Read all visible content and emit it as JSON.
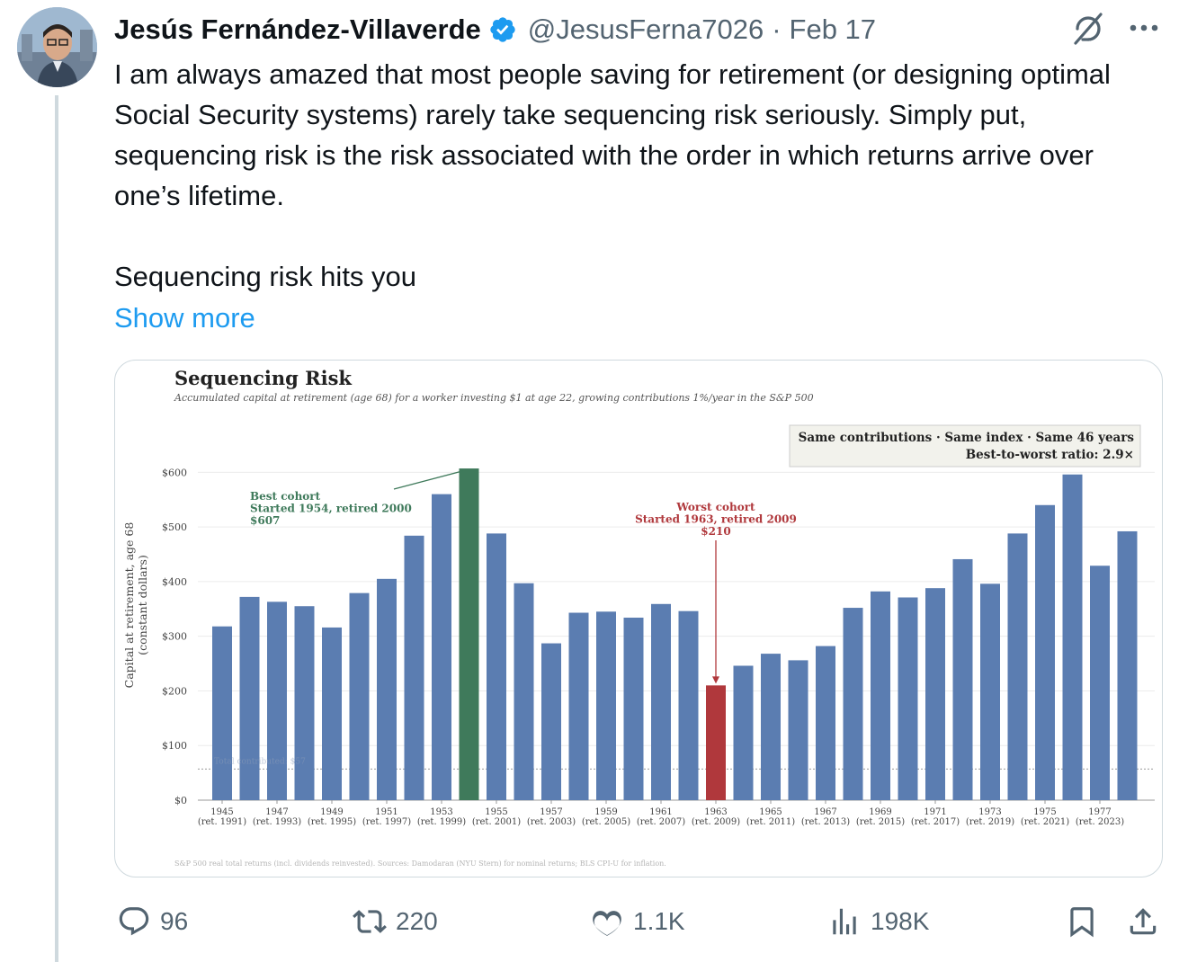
{
  "tweet": {
    "author_name": "Jesús Fernández-Villaverde",
    "handle": "@JesusFerna7026",
    "separator": "·",
    "date": "Feb 17",
    "paragraph_1": "I am always amazed that most people saving for retirement (or designing optimal Social Security systems) rarely take sequencing risk seriously. Simply put, sequencing risk is the risk associated with the order in which returns arrive over one’s lifetime.",
    "paragraph_2": "Sequencing risk hits you",
    "show_more": "Show more"
  },
  "icons": {
    "avatar": "profile-photo",
    "verified": "verified-badge-icon",
    "grok": "grok-icon",
    "more": "more-icon",
    "reply": "reply-icon",
    "retweet": "retweet-icon",
    "like": "heart-icon",
    "views": "analytics-icon",
    "bookmark": "bookmark-icon",
    "share": "share-icon"
  },
  "actions": {
    "replies": "96",
    "retweets": "220",
    "likes": "1.1K",
    "views": "198K"
  },
  "colors": {
    "bar": "#5b7db1",
    "best": "#3f7a5b",
    "worst": "#b0383c",
    "link": "#1d9bf0",
    "verified": "#1d9bf0"
  },
  "chart_data": {
    "type": "bar",
    "title": "Sequencing Risk",
    "subtitle": "Accumulated capital at retirement (age 68) for a worker investing $1 at age 22, growing contributions 1%/year in the S&P 500",
    "ylabel_line1": "Capital at retirement, age 68",
    "ylabel_line2": "(constant dollars)",
    "ylim": [
      0,
      640
    ],
    "yticks": [
      0,
      100,
      200,
      300,
      400,
      500,
      600
    ],
    "ytick_labels": [
      "$0",
      "$100",
      "$200",
      "$300",
      "$400",
      "$500",
      "$600"
    ],
    "categories": [
      "1945",
      "1946",
      "1947",
      "1948",
      "1949",
      "1950",
      "1951",
      "1952",
      "1953",
      "1954",
      "1955",
      "1956",
      "1957",
      "1958",
      "1959",
      "1960",
      "1961",
      "1962",
      "1963",
      "1964",
      "1965",
      "1966",
      "1967",
      "1968",
      "1969",
      "1970",
      "1971",
      "1972",
      "1973",
      "1974",
      "1975",
      "1976",
      "1977",
      "1978"
    ],
    "values": [
      318,
      372,
      363,
      355,
      316,
      379,
      405,
      484,
      560,
      607,
      488,
      397,
      287,
      343,
      345,
      334,
      359,
      346,
      210,
      246,
      268,
      256,
      282,
      352,
      382,
      371,
      388,
      441,
      396,
      488,
      540,
      596,
      429,
      492
    ],
    "xtick_labels": [
      {
        "category": "1945",
        "year": "1945",
        "ret": "(ret. 1991)"
      },
      {
        "category": "1947",
        "year": "1947",
        "ret": "(ret. 1993)"
      },
      {
        "category": "1949",
        "year": "1949",
        "ret": "(ret. 1995)"
      },
      {
        "category": "1951",
        "year": "1951",
        "ret": "(ret. 1997)"
      },
      {
        "category": "1953",
        "year": "1953",
        "ret": "(ret. 1999)"
      },
      {
        "category": "1955",
        "year": "1955",
        "ret": "(ret. 2001)"
      },
      {
        "category": "1957",
        "year": "1957",
        "ret": "(ret. 2003)"
      },
      {
        "category": "1959",
        "year": "1959",
        "ret": "(ret. 2005)"
      },
      {
        "category": "1961",
        "year": "1961",
        "ret": "(ret. 2007)"
      },
      {
        "category": "1963",
        "year": "1963",
        "ret": "(ret. 2009)"
      },
      {
        "category": "1965",
        "year": "1965",
        "ret": "(ret. 2011)"
      },
      {
        "category": "1967",
        "year": "1967",
        "ret": "(ret. 2013)"
      },
      {
        "category": "1969",
        "year": "1969",
        "ret": "(ret. 2015)"
      },
      {
        "category": "1971",
        "year": "1971",
        "ret": "(ret. 2017)"
      },
      {
        "category": "1973",
        "year": "1973",
        "ret": "(ret. 2019)"
      },
      {
        "category": "1975",
        "year": "1975",
        "ret": "(ret. 2021)"
      },
      {
        "category": "1977",
        "year": "1977",
        "ret": "(ret. 2023)"
      }
    ],
    "best": {
      "category": "1954",
      "value": 607,
      "label_lines": [
        "Best cohort",
        "Started 1954, retired 2000",
        "$607"
      ]
    },
    "worst": {
      "category": "1963",
      "value": 210,
      "label_lines": [
        "Worst cohort",
        "Started 1963, retired 2009",
        "$210"
      ]
    },
    "reference_line": {
      "value": 57,
      "label": "Total contributed: $57"
    },
    "info_box": [
      "Same contributions · Same index · Same 46 years",
      "Best-to-worst ratio: 2.9×"
    ],
    "footnote": "S&P 500 real total returns (incl. dividends reinvested). Sources: Damodaran (NYU Stern) for nominal returns; BLS CPI-U for inflation.",
    "grid": true,
    "legend": "none"
  }
}
